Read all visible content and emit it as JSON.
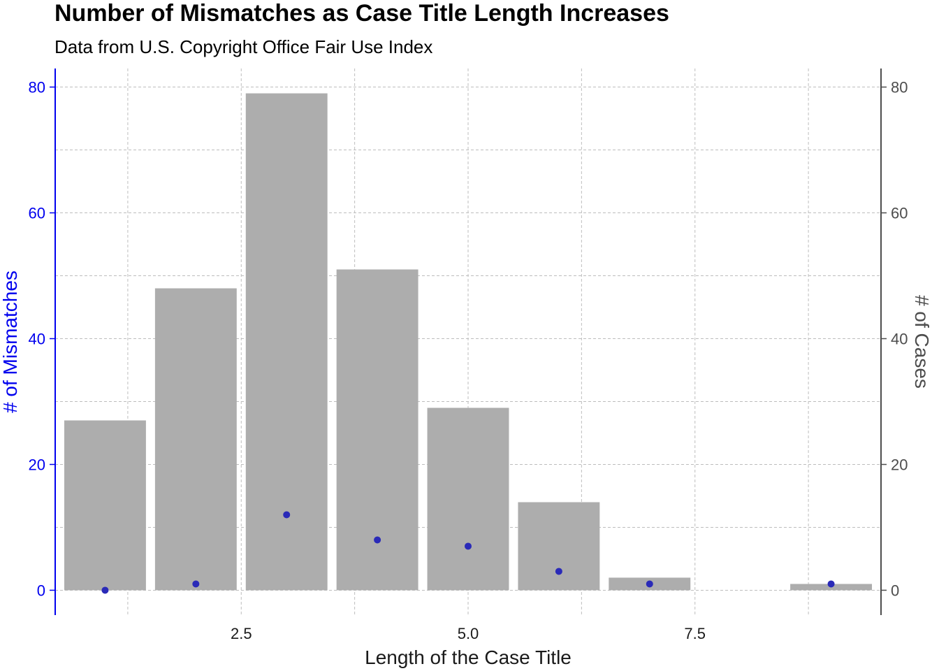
{
  "chart_data": {
    "type": "bar",
    "title": "Number of Mismatches as Case Title Length Increases",
    "subtitle": "Data from U.S. Copyright Office Fair Use Index",
    "xlabel": "Length of the Case Title",
    "ylabel_left": "# of Mismatches",
    "ylabel_right": "# of Cases",
    "x_ticks": [
      "2.5",
      "5.0",
      "7.5"
    ],
    "x_tick_values": [
      2.5,
      5.0,
      7.5
    ],
    "y_ticks": [
      "0",
      "20",
      "40",
      "60",
      "80"
    ],
    "y_tick_values": [
      0,
      20,
      40,
      60,
      80
    ],
    "xlim": [
      0.45,
      9.55
    ],
    "ylim": [
      -3.95,
      82.95
    ],
    "grid": true,
    "series": [
      {
        "kind": "bar",
        "axis": "right",
        "x": [
          1,
          2,
          3,
          4,
          5,
          6,
          7,
          9
        ],
        "values": [
          27,
          48,
          79,
          51,
          29,
          14,
          2,
          1
        ]
      },
      {
        "kind": "point",
        "axis": "left",
        "x": [
          1,
          2,
          3,
          4,
          5,
          6,
          7,
          9
        ],
        "values": [
          0,
          1,
          12,
          8,
          7,
          3,
          1,
          1
        ]
      }
    ],
    "colors": {
      "bar": "#adadad",
      "point": "#2a2ab8",
      "left_axis": "#0000ee",
      "right_axis": "#4d4d4d"
    }
  }
}
